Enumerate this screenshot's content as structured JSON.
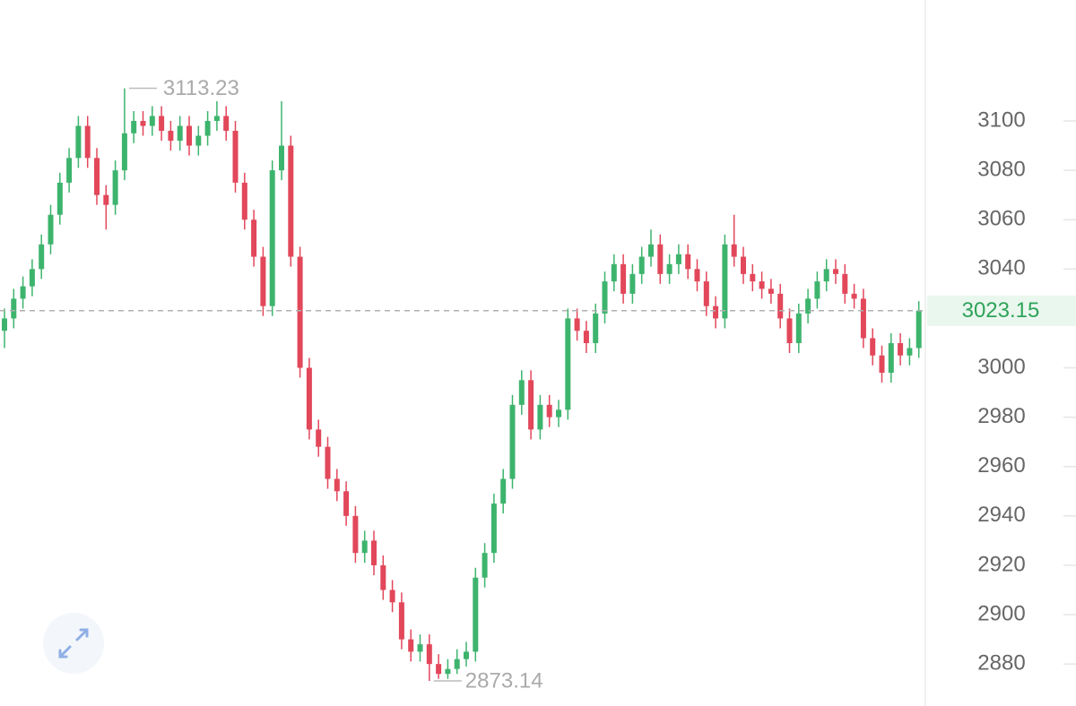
{
  "chart_data": {
    "type": "candlestick",
    "open": [
      3015,
      3020,
      3028,
      3033,
      3040,
      3050,
      3062,
      3075,
      3085,
      3098,
      3085,
      3070,
      3066,
      3080,
      3095,
      3100,
      3098,
      3102,
      3096,
      3092,
      3098,
      3090,
      3094,
      3100,
      3102,
      3096,
      3075,
      3060,
      3045,
      3025,
      3080,
      3090,
      3045,
      3000,
      2975,
      2968,
      2955,
      2950,
      2940,
      2925,
      2930,
      2920,
      2910,
      2905,
      2890,
      2885,
      2888,
      2880,
      2876,
      2878,
      2882,
      2885,
      2915,
      2925,
      2945,
      2955,
      2985,
      2995,
      2975,
      2985,
      2980,
      2983,
      3020,
      3015,
      3010,
      3022,
      3035,
      3042,
      3030,
      3038,
      3045,
      3050,
      3038,
      3042,
      3046,
      3040,
      3035,
      3025,
      3020,
      3050,
      3045,
      3038,
      3035,
      3032,
      3030,
      3020,
      3010,
      3022,
      3028,
      3035,
      3040,
      3038,
      3030,
      3028,
      3012,
      3005,
      2998,
      3010,
      3005,
      3008
    ],
    "high": [
      3024,
      3032,
      3037,
      3044,
      3054,
      3066,
      3079,
      3089,
      3102,
      3102,
      3089,
      3074,
      3084,
      3113.23,
      3104,
      3104,
      3106,
      3106,
      3100,
      3102,
      3102,
      3098,
      3104,
      3108,
      3106,
      3100,
      3079,
      3064,
      3049,
      3084,
      3108,
      3094,
      3049,
      3004,
      2979,
      2972,
      2959,
      2954,
      2944,
      2934,
      2934,
      2924,
      2914,
      2909,
      2894,
      2892,
      2892,
      2884,
      2882,
      2886,
      2889,
      2919,
      2929,
      2949,
      2959,
      2989,
      2999,
      2999,
      2989,
      2989,
      2987,
      3024,
      3024,
      3019,
      3026,
      3039,
      3046,
      3046,
      3042,
      3049,
      3056,
      3054,
      3046,
      3050,
      3050,
      3044,
      3039,
      3029,
      3054,
      3062,
      3049,
      3042,
      3039,
      3036,
      3034,
      3024,
      3026,
      3032,
      3039,
      3044,
      3044,
      3042,
      3034,
      3032,
      3016,
      3009,
      3014,
      3014,
      3012,
      3027
    ],
    "low": [
      3008,
      3016,
      3024,
      3029,
      3036,
      3046,
      3058,
      3071,
      3081,
      3081,
      3066,
      3056,
      3062,
      3076,
      3091,
      3094,
      3094,
      3092,
      3088,
      3088,
      3086,
      3086,
      3090,
      3096,
      3092,
      3071,
      3056,
      3041,
      3021,
      3021,
      3076,
      3041,
      2996,
      2971,
      2964,
      2951,
      2946,
      2936,
      2921,
      2921,
      2916,
      2906,
      2901,
      2886,
      2881,
      2881,
      2873.14,
      2874,
      2874,
      2876,
      2879,
      2881,
      2911,
      2921,
      2941,
      2951,
      2981,
      2971,
      2971,
      2976,
      2976,
      2979,
      3011,
      3006,
      3006,
      3018,
      3031,
      3026,
      3026,
      3034,
      3041,
      3034,
      3034,
      3038,
      3036,
      3031,
      3021,
      3016,
      3016,
      3041,
      3034,
      3031,
      3028,
      3026,
      3016,
      3006,
      3006,
      3018,
      3024,
      3031,
      3034,
      3026,
      3024,
      3008,
      3001,
      2994,
      2994,
      3001,
      3001,
      3004
    ],
    "close": [
      3020,
      3028,
      3033,
      3040,
      3050,
      3062,
      3075,
      3085,
      3098,
      3085,
      3070,
      3066,
      3080,
      3095,
      3100,
      3098,
      3102,
      3096,
      3092,
      3098,
      3090,
      3094,
      3100,
      3102,
      3096,
      3075,
      3060,
      3045,
      3025,
      3080,
      3090,
      3045,
      3000,
      2975,
      2968,
      2955,
      2950,
      2940,
      2925,
      2930,
      2920,
      2910,
      2905,
      2890,
      2885,
      2888,
      2880,
      2876,
      2878,
      2882,
      2885,
      2915,
      2925,
      2945,
      2955,
      2985,
      2995,
      2975,
      2985,
      2980,
      2983,
      3020,
      3015,
      3010,
      3022,
      3035,
      3042,
      3030,
      3038,
      3045,
      3050,
      3038,
      3042,
      3046,
      3040,
      3035,
      3025,
      3020,
      3050,
      3045,
      3038,
      3035,
      3032,
      3030,
      3020,
      3010,
      3022,
      3028,
      3035,
      3040,
      3038,
      3030,
      3028,
      3012,
      3005,
      2998,
      3010,
      3005,
      3008,
      3023.15
    ],
    "up_color": "#3db46d",
    "down_color": "#e2475a",
    "ylim": [
      2863,
      3149
    ],
    "yticks": [
      2880,
      2900,
      2920,
      2940,
      2960,
      2980,
      3000,
      3020,
      3040,
      3060,
      3080,
      3100
    ],
    "high_label": 3113.23,
    "low_label": 2873.14,
    "last_price": 3023.15,
    "last_price_color": "#2fa35a"
  }
}
